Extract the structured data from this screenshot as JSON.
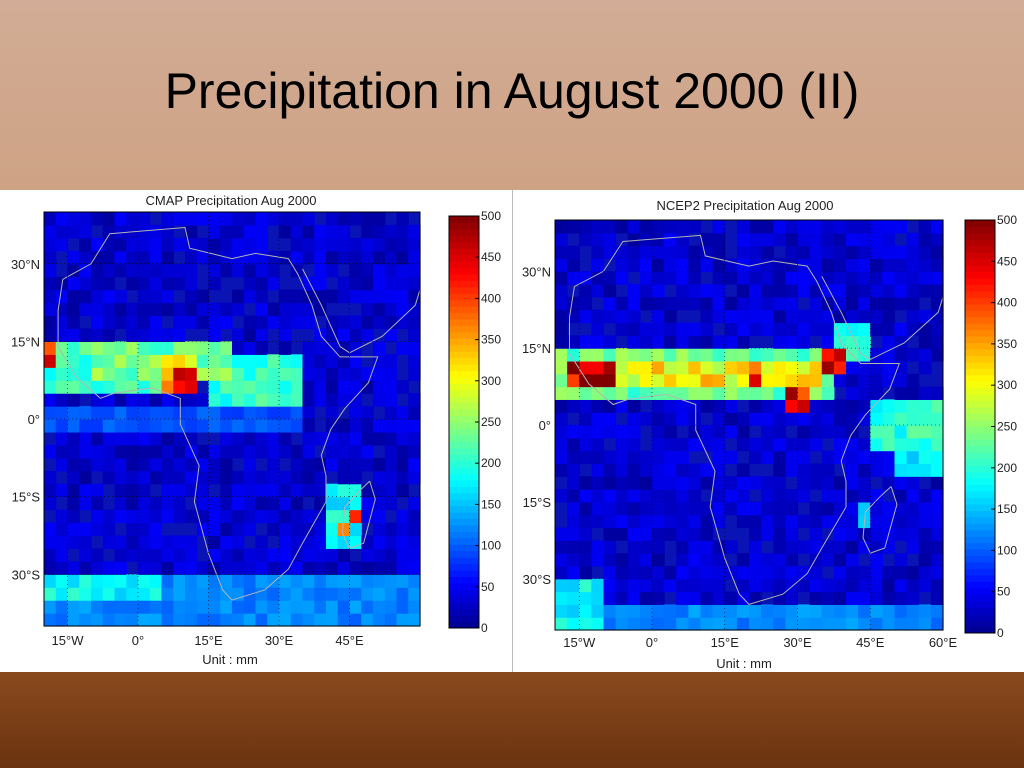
{
  "slide": {
    "title": "Precipitation in August 2000 (II)"
  },
  "colors": {
    "ocean_base": "#0a14b4",
    "land_outline": "#b4b4b4"
  },
  "chart_data": [
    {
      "type": "heatmap",
      "title": "CMAP Precipitation    Aug 2000",
      "xlabel": "Unit : mm",
      "ylabel": "",
      "x_ticks": [
        "15°W",
        "0°",
        "15°E",
        "30°E",
        "45°E"
      ],
      "y_ticks": [
        "30°N",
        "15°N",
        "0°",
        "15°S",
        "30°S"
      ],
      "xlim": [
        -20,
        60
      ],
      "ylim": [
        -40,
        40
      ],
      "grid_step_deg": 2.5,
      "colorbar": {
        "min": 0,
        "max": 500,
        "ticks": [
          0,
          50,
          100,
          150,
          200,
          250,
          300,
          350,
          400,
          450,
          500
        ]
      },
      "regions": [
        {
          "lon": [
            -20,
            10
          ],
          "lat": [
            5,
            15
          ],
          "value": 210
        },
        {
          "lon": [
            -10,
            20
          ],
          "lat": [
            8,
            14
          ],
          "value": 235
        },
        {
          "lon": [
            15,
            35
          ],
          "lat": [
            3,
            13
          ],
          "value": 200
        },
        {
          "lon": [
            -20,
            -17.5
          ],
          "lat": [
            10,
            15
          ],
          "value": 420
        },
        {
          "lon": [
            5,
            12.5
          ],
          "lat": [
            5,
            12.5
          ],
          "value": 330
        },
        {
          "lon": [
            7.5,
            12.5
          ],
          "lat": [
            5,
            10
          ],
          "value": 480
        },
        {
          "lon": [
            -20,
            35
          ],
          "lat": [
            -2,
            3
          ],
          "value": 95
        },
        {
          "lon": [
            -20,
            60
          ],
          "lat": [
            -40,
            -30
          ],
          "value": 120
        },
        {
          "lon": [
            -20,
            5
          ],
          "lat": [
            -35,
            -30
          ],
          "value": 180
        },
        {
          "lon": [
            40,
            48
          ],
          "lat": [
            -25,
            -12
          ],
          "value": 180
        },
        {
          "lon": [
            45,
            47.5
          ],
          "lat": [
            -20,
            -17.5
          ],
          "value": 470
        },
        {
          "lon": [
            42.5,
            45
          ],
          "lat": [
            -22.5,
            -20
          ],
          "value": 340
        }
      ]
    },
    {
      "type": "heatmap",
      "title": "NCEP2 Precipitation    Aug 2000",
      "xlabel": "Unit : mm",
      "ylabel": "",
      "x_ticks": [
        "15°W",
        "0°",
        "15°E",
        "30°E",
        "45°E",
        "60°E"
      ],
      "y_ticks": [
        "30°N",
        "15°N",
        "0°",
        "15°S",
        "30°S"
      ],
      "xlim": [
        -20,
        60
      ],
      "ylim": [
        -40,
        40
      ],
      "grid_step_deg": 2.5,
      "colorbar": {
        "min": 0,
        "max": 500,
        "ticks": [
          0,
          50,
          100,
          150,
          200,
          250,
          300,
          350,
          400,
          450,
          500
        ]
      },
      "regions": [
        {
          "lon": [
            -20,
            38
          ],
          "lat": [
            5,
            15
          ],
          "value": 230
        },
        {
          "lon": [
            -17.5,
            35
          ],
          "lat": [
            7.5,
            12.5
          ],
          "value": 310
        },
        {
          "lon": [
            -17.5,
            -7.5
          ],
          "lat": [
            7.5,
            12.5
          ],
          "value": 470
        },
        {
          "lon": [
            12.5,
            15
          ],
          "lat": [
            7.5,
            10
          ],
          "value": 400
        },
        {
          "lon": [
            20,
            22.5
          ],
          "lat": [
            7.5,
            12.5
          ],
          "value": 420
        },
        {
          "lon": [
            27.5,
            32.5
          ],
          "lat": [
            2.5,
            7.5
          ],
          "value": 440
        },
        {
          "lon": [
            35,
            40
          ],
          "lat": [
            10,
            15
          ],
          "value": 430
        },
        {
          "lon": [
            38,
            45
          ],
          "lat": [
            12,
            20
          ],
          "value": 190
        },
        {
          "lon": [
            45,
            60
          ],
          "lat": [
            -5,
            5
          ],
          "value": 200
        },
        {
          "lon": [
            50,
            60
          ],
          "lat": [
            -10,
            -5
          ],
          "value": 170
        },
        {
          "lon": [
            -20,
            -10
          ],
          "lat": [
            -40,
            -30
          ],
          "value": 180
        },
        {
          "lon": [
            -20,
            60
          ],
          "lat": [
            -40,
            -35
          ],
          "value": 120
        },
        {
          "lon": [
            42.5,
            45
          ],
          "lat": [
            -20,
            -15
          ],
          "value": 150
        }
      ]
    }
  ]
}
